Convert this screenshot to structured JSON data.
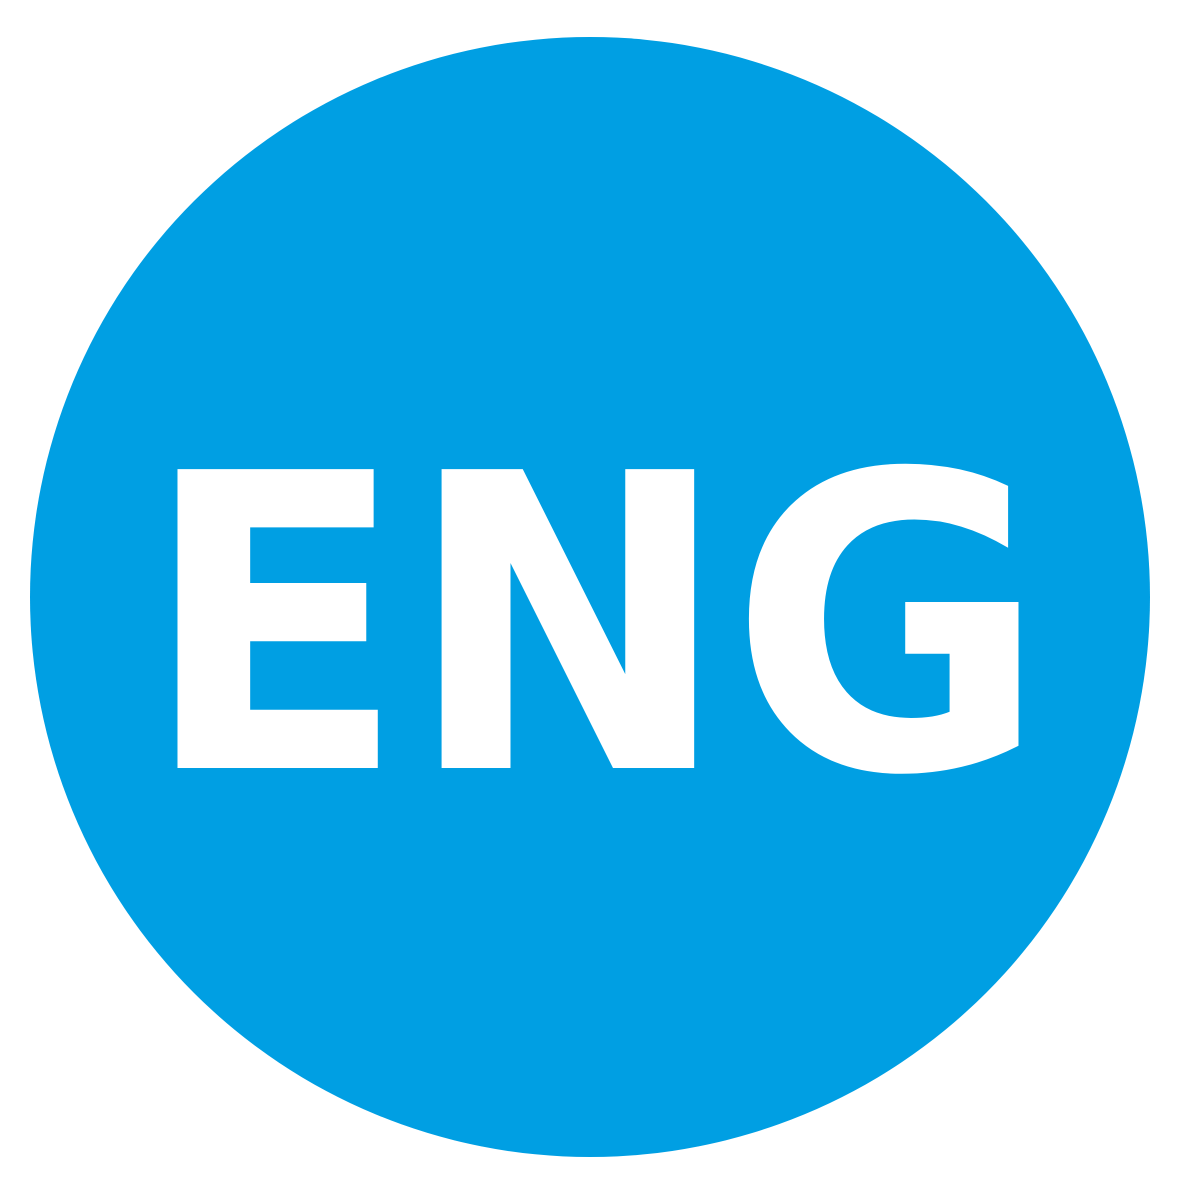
{
  "label": "ENG"
}
